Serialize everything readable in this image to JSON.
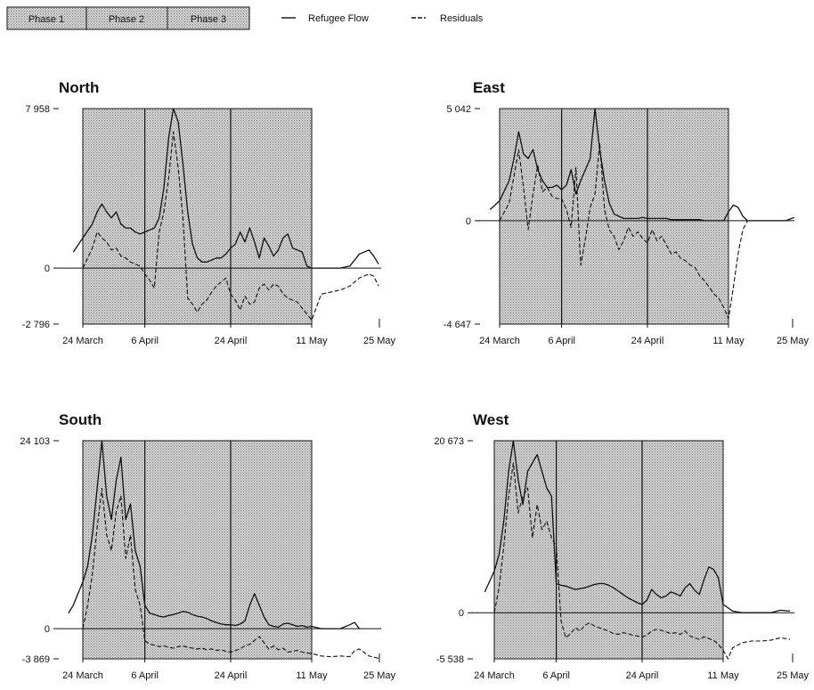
{
  "legend": {
    "phases": [
      "Phase 1",
      "Phase 2",
      "Phase 3"
    ],
    "series": [
      "Refugee Flow",
      "Residuals"
    ]
  },
  "colors": {
    "shade": "#c8c8c8",
    "line": "#111111"
  },
  "chart_data": [
    {
      "type": "line",
      "title": "North",
      "ylim": [
        -2796,
        7958
      ],
      "yticks": [
        7958,
        0,
        -2796
      ],
      "ytick_labels": [
        "7 958",
        "0",
        "-2 796"
      ],
      "xlim": [
        0,
        62
      ],
      "xticks": [
        0,
        13,
        31,
        48,
        62
      ],
      "xtick_labels": [
        "24 March",
        "6 April",
        "24 April",
        "11 May",
        "25 May"
      ],
      "phase_bounds": [
        0,
        13,
        31,
        48
      ],
      "series": [
        {
          "name": "Refugee Flow",
          "x": [
            -2,
            0,
            2,
            3,
            4,
            5,
            6,
            7,
            8,
            9,
            10,
            11,
            12,
            13,
            14,
            15,
            16,
            17,
            18,
            19,
            20,
            21,
            22,
            23,
            24,
            25,
            26,
            27,
            28,
            29,
            30,
            31,
            32,
            33,
            34,
            35,
            36,
            37,
            38,
            39,
            40,
            41,
            42,
            43,
            44,
            45,
            46,
            47,
            48,
            50,
            52,
            54,
            56,
            58,
            60,
            61,
            62
          ],
          "y": [
            800,
            1500,
            2200,
            2800,
            3200,
            2800,
            2500,
            2800,
            2200,
            2000,
            2000,
            1800,
            1700,
            1800,
            1900,
            2000,
            2500,
            4000,
            6500,
            7958,
            7300,
            5200,
            2800,
            1200,
            500,
            300,
            300,
            400,
            500,
            500,
            700,
            1000,
            1200,
            1800,
            1300,
            2000,
            1300,
            500,
            1500,
            1100,
            600,
            900,
            1500,
            1700,
            1000,
            900,
            800,
            100,
            0,
            0,
            0,
            0,
            100,
            700,
            900,
            600,
            200
          ]
        },
        {
          "name": "Residuals",
          "x": [
            0,
            2,
            3,
            4,
            5,
            6,
            7,
            8,
            9,
            10,
            11,
            12,
            13,
            14,
            15,
            16,
            17,
            18,
            19,
            20,
            21,
            22,
            23,
            24,
            25,
            26,
            27,
            28,
            29,
            30,
            31,
            32,
            33,
            34,
            35,
            36,
            37,
            38,
            39,
            40,
            41,
            42,
            43,
            44,
            45,
            46,
            47,
            48,
            50,
            52,
            54,
            56,
            58,
            60,
            61,
            62
          ],
          "y": [
            0,
            1000,
            1800,
            1500,
            1300,
            900,
            1000,
            600,
            500,
            300,
            200,
            100,
            -300,
            -600,
            -1000,
            1800,
            2800,
            4500,
            6800,
            5000,
            2500,
            -1500,
            -1800,
            -2200,
            -1800,
            -1600,
            -1200,
            -900,
            -700,
            -500,
            -1300,
            -1600,
            -2100,
            -1400,
            -1800,
            -1700,
            -1000,
            -800,
            -1100,
            -800,
            -900,
            -1300,
            -1500,
            -1600,
            -1700,
            -2000,
            -2300,
            -2600,
            -1300,
            -1200,
            -1100,
            -900,
            -500,
            -300,
            -400,
            -900
          ]
        }
      ]
    },
    {
      "type": "line",
      "title": "East",
      "ylim": [
        -4647,
        5042
      ],
      "yticks": [
        5042,
        0,
        -4647
      ],
      "ytick_labels": [
        "5 042",
        "0",
        "-4 647"
      ],
      "xlim": [
        0,
        62
      ],
      "xticks": [
        0,
        13,
        31,
        48,
        62
      ],
      "xtick_labels": [
        "24 March",
        "6 April",
        "24 April",
        "11 May",
        "25 May"
      ],
      "phase_bounds": [
        0,
        13,
        31,
        48
      ],
      "series": [
        {
          "name": "Refugee Flow",
          "x": [
            -2,
            0,
            2,
            3,
            4,
            5,
            6,
            7,
            8,
            9,
            10,
            11,
            12,
            13,
            14,
            15,
            16,
            17,
            18,
            19,
            20,
            21,
            22,
            23,
            24,
            25,
            26,
            27,
            28,
            29,
            30,
            31,
            32,
            33,
            34,
            35,
            36,
            37,
            38,
            39,
            40,
            41,
            42,
            43,
            44,
            45,
            46,
            47,
            48,
            49,
            50,
            51,
            52,
            54,
            56,
            58,
            60,
            62
          ],
          "y": [
            500,
            900,
            1800,
            2800,
            4000,
            3000,
            2800,
            3200,
            2300,
            1800,
            1500,
            1500,
            1600,
            1400,
            1600,
            2300,
            1200,
            1800,
            2300,
            2800,
            5042,
            3200,
            1800,
            800,
            300,
            200,
            100,
            100,
            100,
            100,
            150,
            100,
            100,
            100,
            100,
            100,
            50,
            50,
            50,
            50,
            50,
            50,
            50,
            0,
            0,
            0,
            0,
            0,
            400,
            700,
            600,
            200,
            0,
            0,
            0,
            0,
            0,
            150
          ]
        },
        {
          "name": "Residuals",
          "x": [
            0,
            2,
            3,
            4,
            5,
            6,
            7,
            8,
            9,
            10,
            11,
            12,
            13,
            14,
            15,
            16,
            17,
            18,
            19,
            20,
            21,
            22,
            23,
            24,
            25,
            26,
            27,
            28,
            29,
            30,
            31,
            32,
            33,
            34,
            35,
            36,
            37,
            38,
            39,
            40,
            41,
            42,
            43,
            44,
            45,
            46,
            47,
            48,
            49,
            50,
            51,
            52
          ],
          "y": [
            0,
            800,
            2000,
            3200,
            1500,
            -400,
            1200,
            2500,
            1300,
            1500,
            1100,
            1000,
            1000,
            500,
            -300,
            2400,
            -2000,
            -800,
            600,
            1200,
            3500,
            500,
            -400,
            -700,
            -1300,
            -900,
            -300,
            -700,
            -500,
            -800,
            -1000,
            -400,
            -900,
            -700,
            -1100,
            -1500,
            -1400,
            -1700,
            -1800,
            -2000,
            -2100,
            -2500,
            -2700,
            -3000,
            -3300,
            -3500,
            -3900,
            -4400,
            -3000,
            -1500,
            -400,
            0
          ]
        }
      ]
    },
    {
      "type": "line",
      "title": "South",
      "ylim": [
        -3869,
        24103
      ],
      "yticks": [
        24103,
        0,
        -3869
      ],
      "ytick_labels": [
        "24 103",
        "0",
        "-3 869"
      ],
      "xlim": [
        0,
        62
      ],
      "xticks": [
        0,
        13,
        31,
        48,
        62
      ],
      "xtick_labels": [
        "24 March",
        "6 April",
        "24 April",
        "11 May",
        "25 May"
      ],
      "phase_bounds": [
        0,
        13,
        31,
        48
      ],
      "series": [
        {
          "name": "Refugee Flow",
          "x": [
            -3,
            -2,
            0,
            1,
            2,
            3,
            4,
            5,
            6,
            7,
            8,
            9,
            10,
            11,
            12,
            13,
            14,
            15,
            16,
            17,
            18,
            19,
            20,
            21,
            22,
            23,
            24,
            25,
            26,
            27,
            28,
            29,
            30,
            31,
            32,
            33,
            34,
            35,
            36,
            37,
            38,
            39,
            40,
            41,
            42,
            43,
            44,
            45,
            46,
            47,
            48,
            50,
            52,
            54,
            56,
            57,
            58
          ],
          "y": [
            2000,
            3000,
            6000,
            8000,
            12000,
            18000,
            24103,
            17000,
            14000,
            19000,
            22000,
            14000,
            16000,
            10000,
            8000,
            3000,
            2000,
            1800,
            1600,
            1500,
            1700,
            1800,
            2000,
            2200,
            2100,
            1800,
            1600,
            1500,
            1300,
            1000,
            800,
            600,
            500,
            500,
            400,
            600,
            1000,
            3000,
            4500,
            3000,
            1500,
            500,
            300,
            200,
            600,
            700,
            500,
            300,
            400,
            200,
            300,
            0,
            0,
            0,
            500,
            800,
            0
          ]
        },
        {
          "name": "Residuals",
          "x": [
            0,
            1,
            2,
            3,
            4,
            5,
            6,
            7,
            8,
            9,
            10,
            11,
            12,
            13,
            14,
            15,
            16,
            17,
            18,
            19,
            20,
            21,
            22,
            23,
            24,
            25,
            26,
            27,
            28,
            29,
            30,
            31,
            32,
            33,
            34,
            35,
            36,
            37,
            38,
            39,
            40,
            41,
            42,
            43,
            44,
            45,
            46,
            47,
            48,
            50,
            52,
            54,
            56,
            57,
            58,
            60,
            62
          ],
          "y": [
            0,
            3000,
            7000,
            13000,
            18000,
            12000,
            10000,
            15000,
            17000,
            9000,
            12000,
            5000,
            3000,
            -1500,
            -2000,
            -2100,
            -2300,
            -2200,
            -2400,
            -2500,
            -2300,
            -2200,
            -2400,
            -2500,
            -2600,
            -2500,
            -2700,
            -2600,
            -2800,
            -2700,
            -2900,
            -3000,
            -2800,
            -2600,
            -2200,
            -2000,
            -1500,
            -1000,
            -1800,
            -2600,
            -2200,
            -2700,
            -2500,
            -3000,
            -2900,
            -2800,
            -3000,
            -3100,
            -3200,
            -3500,
            -3600,
            -3500,
            -3600,
            -2800,
            -2600,
            -3500,
            -3800
          ]
        }
      ]
    },
    {
      "type": "line",
      "title": "West",
      "ylim": [
        -5538,
        20673
      ],
      "yticks": [
        20673,
        0,
        -5538
      ],
      "ytick_labels": [
        "20 673",
        "0",
        "-5 538"
      ],
      "xlim": [
        0,
        62
      ],
      "xticks": [
        0,
        13,
        31,
        48,
        62
      ],
      "xtick_labels": [
        "24 March",
        "6 April",
        "24 April",
        "11 May",
        "25 May"
      ],
      "phase_bounds": [
        0,
        13,
        31,
        48
      ],
      "series": [
        {
          "name": "Refugee Flow",
          "x": [
            -2,
            0,
            1,
            2,
            3,
            4,
            5,
            6,
            7,
            8,
            9,
            10,
            11,
            12,
            13,
            14,
            15,
            16,
            17,
            18,
            19,
            20,
            21,
            22,
            23,
            24,
            25,
            26,
            27,
            28,
            29,
            30,
            31,
            32,
            33,
            34,
            35,
            36,
            37,
            38,
            39,
            40,
            41,
            42,
            43,
            44,
            45,
            46,
            47,
            48,
            50,
            52,
            54,
            56,
            58,
            60,
            62
          ],
          "y": [
            2500,
            5000,
            7000,
            11000,
            17000,
            20673,
            16000,
            13000,
            17000,
            18000,
            19000,
            17000,
            15000,
            14000,
            3500,
            3300,
            3200,
            3000,
            2800,
            2900,
            3000,
            3200,
            3400,
            3500,
            3500,
            3300,
            3000,
            2600,
            2200,
            1800,
            1500,
            1200,
            1000,
            1500,
            2800,
            2200,
            1800,
            2000,
            2500,
            2300,
            2000,
            3000,
            3500,
            2700,
            2200,
            4000,
            5500,
            5200,
            4200,
            1000,
            200,
            0,
            0,
            0,
            0,
            300,
            200
          ]
        },
        {
          "name": "Residuals",
          "x": [
            0,
            1,
            2,
            3,
            4,
            5,
            6,
            7,
            8,
            9,
            10,
            11,
            12,
            13,
            14,
            15,
            16,
            17,
            18,
            19,
            20,
            21,
            22,
            23,
            24,
            25,
            26,
            27,
            28,
            29,
            30,
            31,
            32,
            33,
            34,
            35,
            36,
            37,
            38,
            39,
            40,
            41,
            42,
            43,
            44,
            45,
            46,
            47,
            48,
            49,
            50,
            52,
            54,
            56,
            58,
            60,
            62
          ],
          "y": [
            0,
            3000,
            8000,
            14000,
            18000,
            12000,
            14000,
            15000,
            9000,
            13000,
            10000,
            11000,
            9000,
            8000,
            -1000,
            -3000,
            -2500,
            -1800,
            -2200,
            -1500,
            -1200,
            -1600,
            -1800,
            -2000,
            -2200,
            -2500,
            -2600,
            -2400,
            -2500,
            -2700,
            -2800,
            -2900,
            -2700,
            -2200,
            -2000,
            -2100,
            -2300,
            -2500,
            -2400,
            -2600,
            -2200,
            -2800,
            -3000,
            -3200,
            -2900,
            -3100,
            -3300,
            -3800,
            -4500,
            -5538,
            -4200,
            -3600,
            -3400,
            -3400,
            -3300,
            -3000,
            -3200
          ]
        }
      ]
    }
  ]
}
